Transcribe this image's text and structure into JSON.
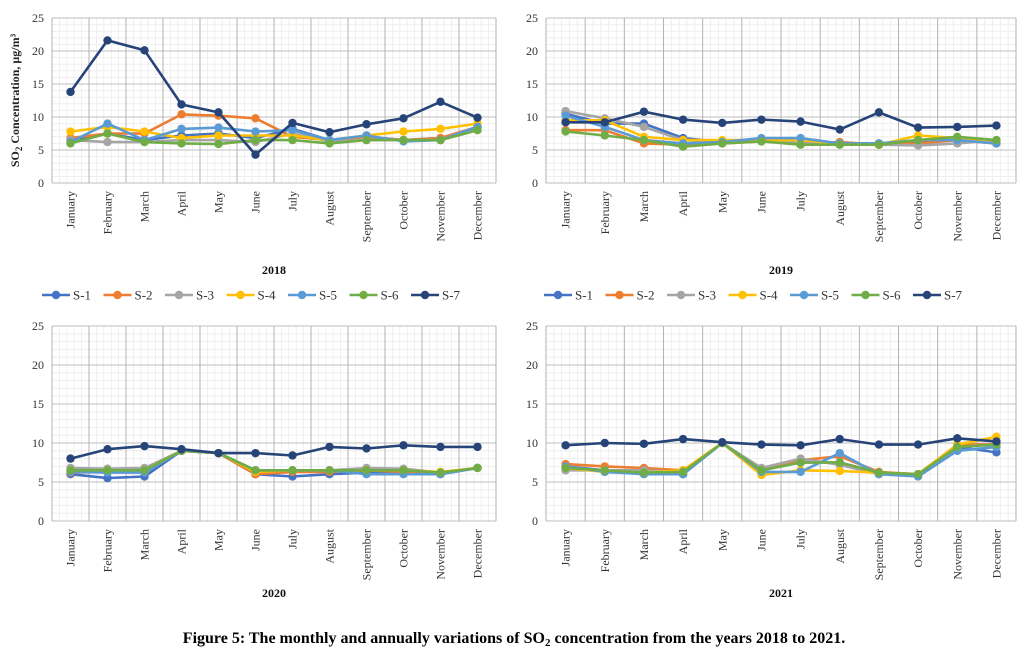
{
  "caption": {
    "pre": "Figure 5: The monthly and annually variations of SO",
    "sub": "2",
    "post": " concentration from the years 2018 to 2021."
  },
  "colors": {
    "S-1": "#4472C4",
    "S-2": "#ED7D31",
    "S-3": "#A5A5A5",
    "S-4": "#FFC000",
    "S-5": "#5B9BD5",
    "S-6": "#70AD47",
    "S-7": "#264478"
  },
  "chart_data": [
    {
      "type": "line",
      "year": "2018",
      "ylabel_main": "SO",
      "ylabel_sub": "2",
      "ylabel_rest": " Concentration, µg/m³",
      "ylim": [
        0,
        25
      ],
      "yticks": [
        0,
        5,
        10,
        15,
        20,
        25
      ],
      "grid": true,
      "legend": "bottom",
      "categories": [
        "January",
        "February",
        "March",
        "April",
        "May",
        "June",
        "July",
        "August",
        "September",
        "October",
        "November",
        "December"
      ],
      "series": [
        {
          "name": "S-1",
          "values": [
            6.5,
            7.5,
            6.5,
            7.2,
            7.5,
            6.8,
            8.2,
            6.5,
            7.0,
            6.5,
            6.8,
            8.5
          ]
        },
        {
          "name": "S-2",
          "values": [
            6.8,
            7.5,
            7.5,
            10.4,
            10.2,
            9.8,
            7.0,
            6.5,
            7.0,
            6.5,
            6.8,
            8.5
          ]
        },
        {
          "name": "S-3",
          "values": [
            6.5,
            6.2,
            6.2,
            6.5,
            6.5,
            6.2,
            7.5,
            6.3,
            6.5,
            6.5,
            6.5,
            8.5
          ]
        },
        {
          "name": "S-4",
          "values": [
            7.8,
            8.5,
            7.8,
            6.8,
            7.2,
            7.2,
            7.2,
            6.5,
            7.2,
            7.8,
            8.2,
            9.0
          ]
        },
        {
          "name": "S-5",
          "values": [
            6.2,
            9.0,
            6.5,
            8.2,
            8.4,
            7.8,
            8.0,
            6.5,
            7.2,
            6.3,
            6.5,
            8.5
          ]
        },
        {
          "name": "S-6",
          "values": [
            6.0,
            7.5,
            6.2,
            6.0,
            5.9,
            6.5,
            6.5,
            6.0,
            6.5,
            6.5,
            6.5,
            8.0
          ]
        },
        {
          "name": "S-7",
          "values": [
            13.8,
            21.6,
            20.1,
            11.9,
            10.7,
            4.3,
            9.1,
            7.7,
            8.9,
            9.8,
            12.3,
            9.9
          ]
        }
      ]
    },
    {
      "type": "line",
      "year": "2019",
      "ylim": [
        0,
        25
      ],
      "yticks": [
        0,
        5,
        10,
        15,
        20,
        25
      ],
      "grid": true,
      "legend": "bottom",
      "categories": [
        "January",
        "February",
        "March",
        "April",
        "May",
        "June",
        "July",
        "August",
        "September",
        "October",
        "November",
        "December"
      ],
      "series": [
        {
          "name": "S-1",
          "values": [
            10.5,
            9.0,
            9.0,
            6.8,
            6.2,
            6.5,
            6.5,
            6.0,
            6.0,
            6.3,
            6.5,
            6.0
          ]
        },
        {
          "name": "S-2",
          "values": [
            8.0,
            8.0,
            6.0,
            5.8,
            6.0,
            6.3,
            6.0,
            6.2,
            5.8,
            6.0,
            6.5,
            6.0
          ]
        },
        {
          "name": "S-3",
          "values": [
            10.9,
            9.8,
            8.5,
            6.5,
            6.2,
            6.5,
            6.0,
            6.0,
            5.8,
            5.7,
            6.0,
            6.5
          ]
        },
        {
          "name": "S-4",
          "values": [
            9.5,
            9.5,
            7.0,
            6.5,
            6.5,
            6.5,
            6.5,
            6.0,
            5.8,
            7.2,
            6.8,
            6.0
          ]
        },
        {
          "name": "S-5",
          "values": [
            10.2,
            8.5,
            6.5,
            6.0,
            6.2,
            6.8,
            6.8,
            6.0,
            6.0,
            6.5,
            6.5,
            6.0
          ]
        },
        {
          "name": "S-6",
          "values": [
            7.8,
            7.2,
            6.5,
            5.5,
            6.0,
            6.3,
            5.8,
            5.8,
            5.8,
            6.5,
            7.0,
            6.5
          ]
        },
        {
          "name": "S-7",
          "values": [
            9.2,
            9.2,
            10.8,
            9.6,
            9.1,
            9.6,
            9.3,
            8.1,
            10.7,
            8.4,
            8.5,
            8.7
          ]
        }
      ]
    },
    {
      "type": "line",
      "year": "2020",
      "ylim": [
        0,
        25
      ],
      "yticks": [
        0,
        5,
        10,
        15,
        20,
        25
      ],
      "grid": true,
      "categories": [
        "January",
        "February",
        "March",
        "April",
        "May",
        "June",
        "July",
        "August",
        "September",
        "October",
        "November",
        "December"
      ],
      "series": [
        {
          "name": "S-1",
          "values": [
            6.0,
            5.5,
            5.7,
            9.0,
            8.7,
            6.0,
            5.7,
            6.0,
            6.2,
            6.2,
            6.0,
            6.8
          ]
        },
        {
          "name": "S-2",
          "values": [
            6.2,
            6.3,
            6.3,
            9.0,
            8.7,
            6.0,
            6.3,
            6.3,
            6.5,
            6.3,
            6.2,
            6.8
          ]
        },
        {
          "name": "S-3",
          "values": [
            6.8,
            6.7,
            6.8,
            9.0,
            8.7,
            6.5,
            6.5,
            6.5,
            6.8,
            6.7,
            6.2,
            6.8
          ]
        },
        {
          "name": "S-4",
          "values": [
            6.5,
            6.5,
            6.5,
            9.0,
            8.7,
            6.3,
            6.5,
            6.5,
            6.5,
            6.5,
            6.3,
            6.8
          ]
        },
        {
          "name": "S-5",
          "values": [
            6.3,
            6.2,
            6.2,
            9.0,
            8.7,
            6.5,
            6.5,
            6.5,
            6.0,
            6.0,
            6.0,
            6.8
          ]
        },
        {
          "name": "S-6",
          "values": [
            6.5,
            6.5,
            6.5,
            9.0,
            8.7,
            6.5,
            6.5,
            6.5,
            6.5,
            6.5,
            6.2,
            6.8
          ]
        },
        {
          "name": "S-7",
          "values": [
            8.0,
            9.2,
            9.6,
            9.2,
            8.7,
            8.7,
            8.4,
            9.5,
            9.3,
            9.7,
            9.5,
            9.5
          ]
        }
      ]
    },
    {
      "type": "line",
      "year": "2021",
      "ylim": [
        0,
        25
      ],
      "yticks": [
        0,
        5,
        10,
        15,
        20,
        25
      ],
      "grid": true,
      "categories": [
        "January",
        "February",
        "March",
        "April",
        "May",
        "June",
        "July",
        "August",
        "September",
        "October",
        "November",
        "December"
      ],
      "series": [
        {
          "name": "S-1",
          "values": [
            7.0,
            6.5,
            6.2,
            6.0,
            10.0,
            6.5,
            7.5,
            7.5,
            6.2,
            5.8,
            9.5,
            8.8
          ]
        },
        {
          "name": "S-2",
          "values": [
            7.3,
            7.0,
            6.8,
            6.5,
            10.0,
            6.5,
            7.8,
            8.3,
            6.3,
            6.0,
            9.8,
            9.8
          ]
        },
        {
          "name": "S-3",
          "values": [
            6.5,
            6.5,
            6.5,
            6.3,
            10.0,
            6.8,
            8.0,
            7.2,
            6.0,
            6.0,
            9.0,
            9.5
          ]
        },
        {
          "name": "S-4",
          "values": [
            6.8,
            6.3,
            6.2,
            6.5,
            10.0,
            5.9,
            6.5,
            6.4,
            6.2,
            6.0,
            9.8,
            10.8
          ]
        },
        {
          "name": "S-5",
          "values": [
            7.0,
            6.3,
            6.0,
            6.0,
            10.0,
            6.3,
            6.3,
            8.7,
            6.0,
            5.7,
            9.0,
            9.5
          ]
        },
        {
          "name": "S-6",
          "values": [
            6.8,
            6.5,
            6.2,
            6.3,
            10.0,
            6.5,
            7.5,
            7.5,
            6.2,
            6.0,
            9.5,
            9.8
          ]
        },
        {
          "name": "S-7",
          "values": [
            9.7,
            10.0,
            9.9,
            10.5,
            10.1,
            9.8,
            9.7,
            10.5,
            9.8,
            9.8,
            10.6,
            10.2
          ]
        }
      ]
    }
  ]
}
